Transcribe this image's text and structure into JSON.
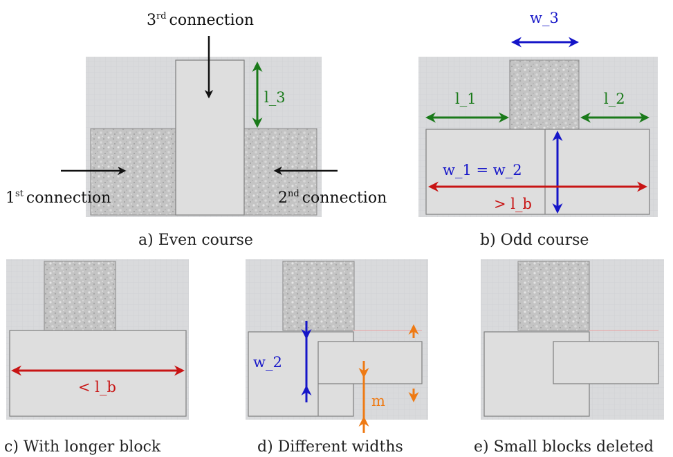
{
  "panels": {
    "a": {
      "caption": "a) Even course",
      "third_connection": {
        "sup": "rd",
        "num": "3",
        "text": "connection"
      },
      "first_connection": {
        "sup": "st",
        "num": "1",
        "text": "connection"
      },
      "second_connection": {
        "sup": "nd",
        "num": "2",
        "text": "connection"
      },
      "l3_label": "l_3"
    },
    "b": {
      "caption": "b) Odd course",
      "w3_label": "w_3",
      "l1_label": "l_1",
      "l2_label": "l_2",
      "w_equal_label": "w_1 = w_2",
      "gt_lb_label": "> l_b"
    },
    "c": {
      "caption": "c) With longer block",
      "lt_lb_label": "< l_b"
    },
    "d": {
      "caption": "d) Different widths",
      "w2_label": "w_2",
      "m_label": "m"
    },
    "e": {
      "caption": "e) Small blocks deleted"
    }
  },
  "colors": {
    "green": "#1a7a1a",
    "blue": "#1515c8",
    "red": "#c81414",
    "orange": "#ee7a14",
    "black": "#111111",
    "block_fill": "#dedede",
    "background_grid": "#d9dadb"
  }
}
